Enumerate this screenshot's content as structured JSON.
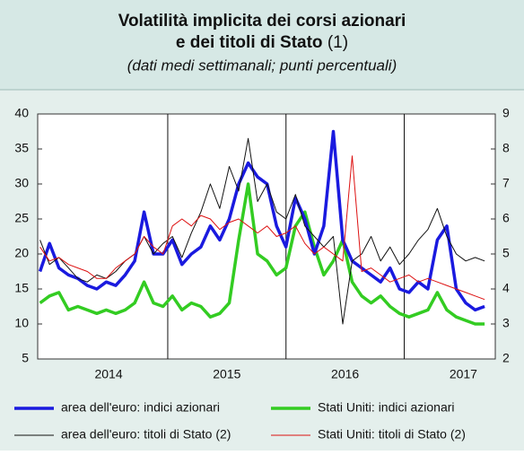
{
  "chart_data": {
    "type": "line",
    "title_lines": [
      "Volatilità implicita dei corsi azionari",
      "e dei titoli di Stato"
    ],
    "title_note": "(1)",
    "subtitle": "(dati medi settimanali; punti percentuali)",
    "x": [
      2013.92,
      2014.0,
      2014.08,
      2014.16,
      2014.24,
      2014.32,
      2014.4,
      2014.48,
      2014.56,
      2014.64,
      2014.72,
      2014.8,
      2014.88,
      2014.96,
      2015.04,
      2015.12,
      2015.2,
      2015.28,
      2015.36,
      2015.44,
      2015.52,
      2015.6,
      2015.68,
      2015.76,
      2015.84,
      2015.92,
      2016.0,
      2016.08,
      2016.16,
      2016.24,
      2016.32,
      2016.4,
      2016.48,
      2016.56,
      2016.64,
      2016.72,
      2016.8,
      2016.88,
      2016.96,
      2017.04,
      2017.12,
      2017.2,
      2017.28,
      2017.36,
      2017.44,
      2017.52,
      2017.6,
      2017.68
    ],
    "xlim": [
      2013.9,
      2017.77
    ],
    "xticks": [
      {
        "value": 2014.5,
        "label": "2014"
      },
      {
        "value": 2015.5,
        "label": "2015"
      },
      {
        "value": 2016.5,
        "label": "2016"
      },
      {
        "value": 2017.5,
        "label": "2017"
      }
    ],
    "year_lines": [
      2015,
      2016,
      2017
    ],
    "ylim": [
      5,
      40
    ],
    "yticks": [
      5,
      10,
      15,
      20,
      25,
      30,
      35,
      40
    ],
    "y2lim": [
      2,
      9
    ],
    "y2ticks": [
      2,
      3,
      4,
      5,
      6,
      7,
      8,
      9
    ],
    "series": [
      {
        "name": "area dell'euro: indici azionari",
        "color": "#1a1adf",
        "width": 3.5,
        "values": [
          17.5,
          21.5,
          18,
          17,
          16.5,
          15.5,
          15,
          16,
          15.5,
          17,
          19,
          26,
          20,
          20,
          22,
          18.5,
          20,
          21,
          24,
          22,
          25,
          30,
          33,
          31,
          30,
          24,
          21,
          28,
          25,
          20,
          24,
          37.5,
          22,
          19,
          18,
          17,
          16,
          18,
          15,
          14.5,
          16,
          15,
          22,
          24,
          15,
          13,
          12,
          12.5
        ]
      },
      {
        "name": "Stati Uniti: indici azionari",
        "color": "#33cc22",
        "width": 3.5,
        "values": [
          13,
          14,
          14.5,
          12,
          12.5,
          12,
          11.5,
          12,
          11.5,
          12,
          13,
          16,
          13,
          12.5,
          14,
          12,
          13,
          12.5,
          11,
          11.5,
          13,
          22,
          30,
          20,
          19,
          17,
          18,
          24,
          26,
          21,
          17,
          19,
          22,
          16,
          14,
          13,
          14,
          12.5,
          11.5,
          11,
          11.5,
          12,
          14.5,
          12,
          11,
          10.5,
          10,
          10
        ]
      },
      {
        "name": "area dell'euro: titoli di Stato (2)",
        "color": "#111111",
        "width": 1,
        "axis": "y2",
        "values": [
          5.4,
          4.7,
          4.9,
          4.6,
          4.3,
          4.2,
          4.4,
          4.3,
          4.5,
          4.8,
          5.0,
          5.5,
          5.0,
          5.3,
          5.5,
          4.9,
          5.6,
          6.2,
          7.0,
          6.3,
          7.5,
          6.8,
          8.3,
          6.5,
          7.0,
          6.2,
          6.0,
          6.7,
          5.8,
          5.5,
          5.2,
          5.5,
          3.0,
          4.8,
          5.0,
          5.5,
          4.8,
          5.2,
          4.7,
          5.0,
          5.4,
          5.7,
          6.3,
          5.5,
          5.0,
          4.8,
          4.9,
          4.8
        ]
      },
      {
        "name": "Stati Uniti: titoli di Stato (2)",
        "color": "#dd1111",
        "width": 1,
        "axis": "y2",
        "values": [
          5.2,
          4.8,
          4.9,
          4.7,
          4.6,
          4.5,
          4.3,
          4.3,
          4.6,
          4.8,
          5.0,
          5.5,
          5.2,
          5.0,
          5.8,
          6.0,
          5.8,
          6.1,
          6.0,
          5.7,
          5.9,
          6.0,
          5.8,
          5.6,
          5.8,
          5.5,
          5.6,
          5.8,
          5.3,
          5.0,
          5.2,
          5.0,
          4.8,
          7.8,
          4.5,
          4.6,
          4.4,
          4.2,
          4.3,
          4.4,
          4.2,
          4.3,
          4.2,
          4.1,
          4.0,
          3.9,
          3.8,
          3.7
        ]
      }
    ]
  }
}
